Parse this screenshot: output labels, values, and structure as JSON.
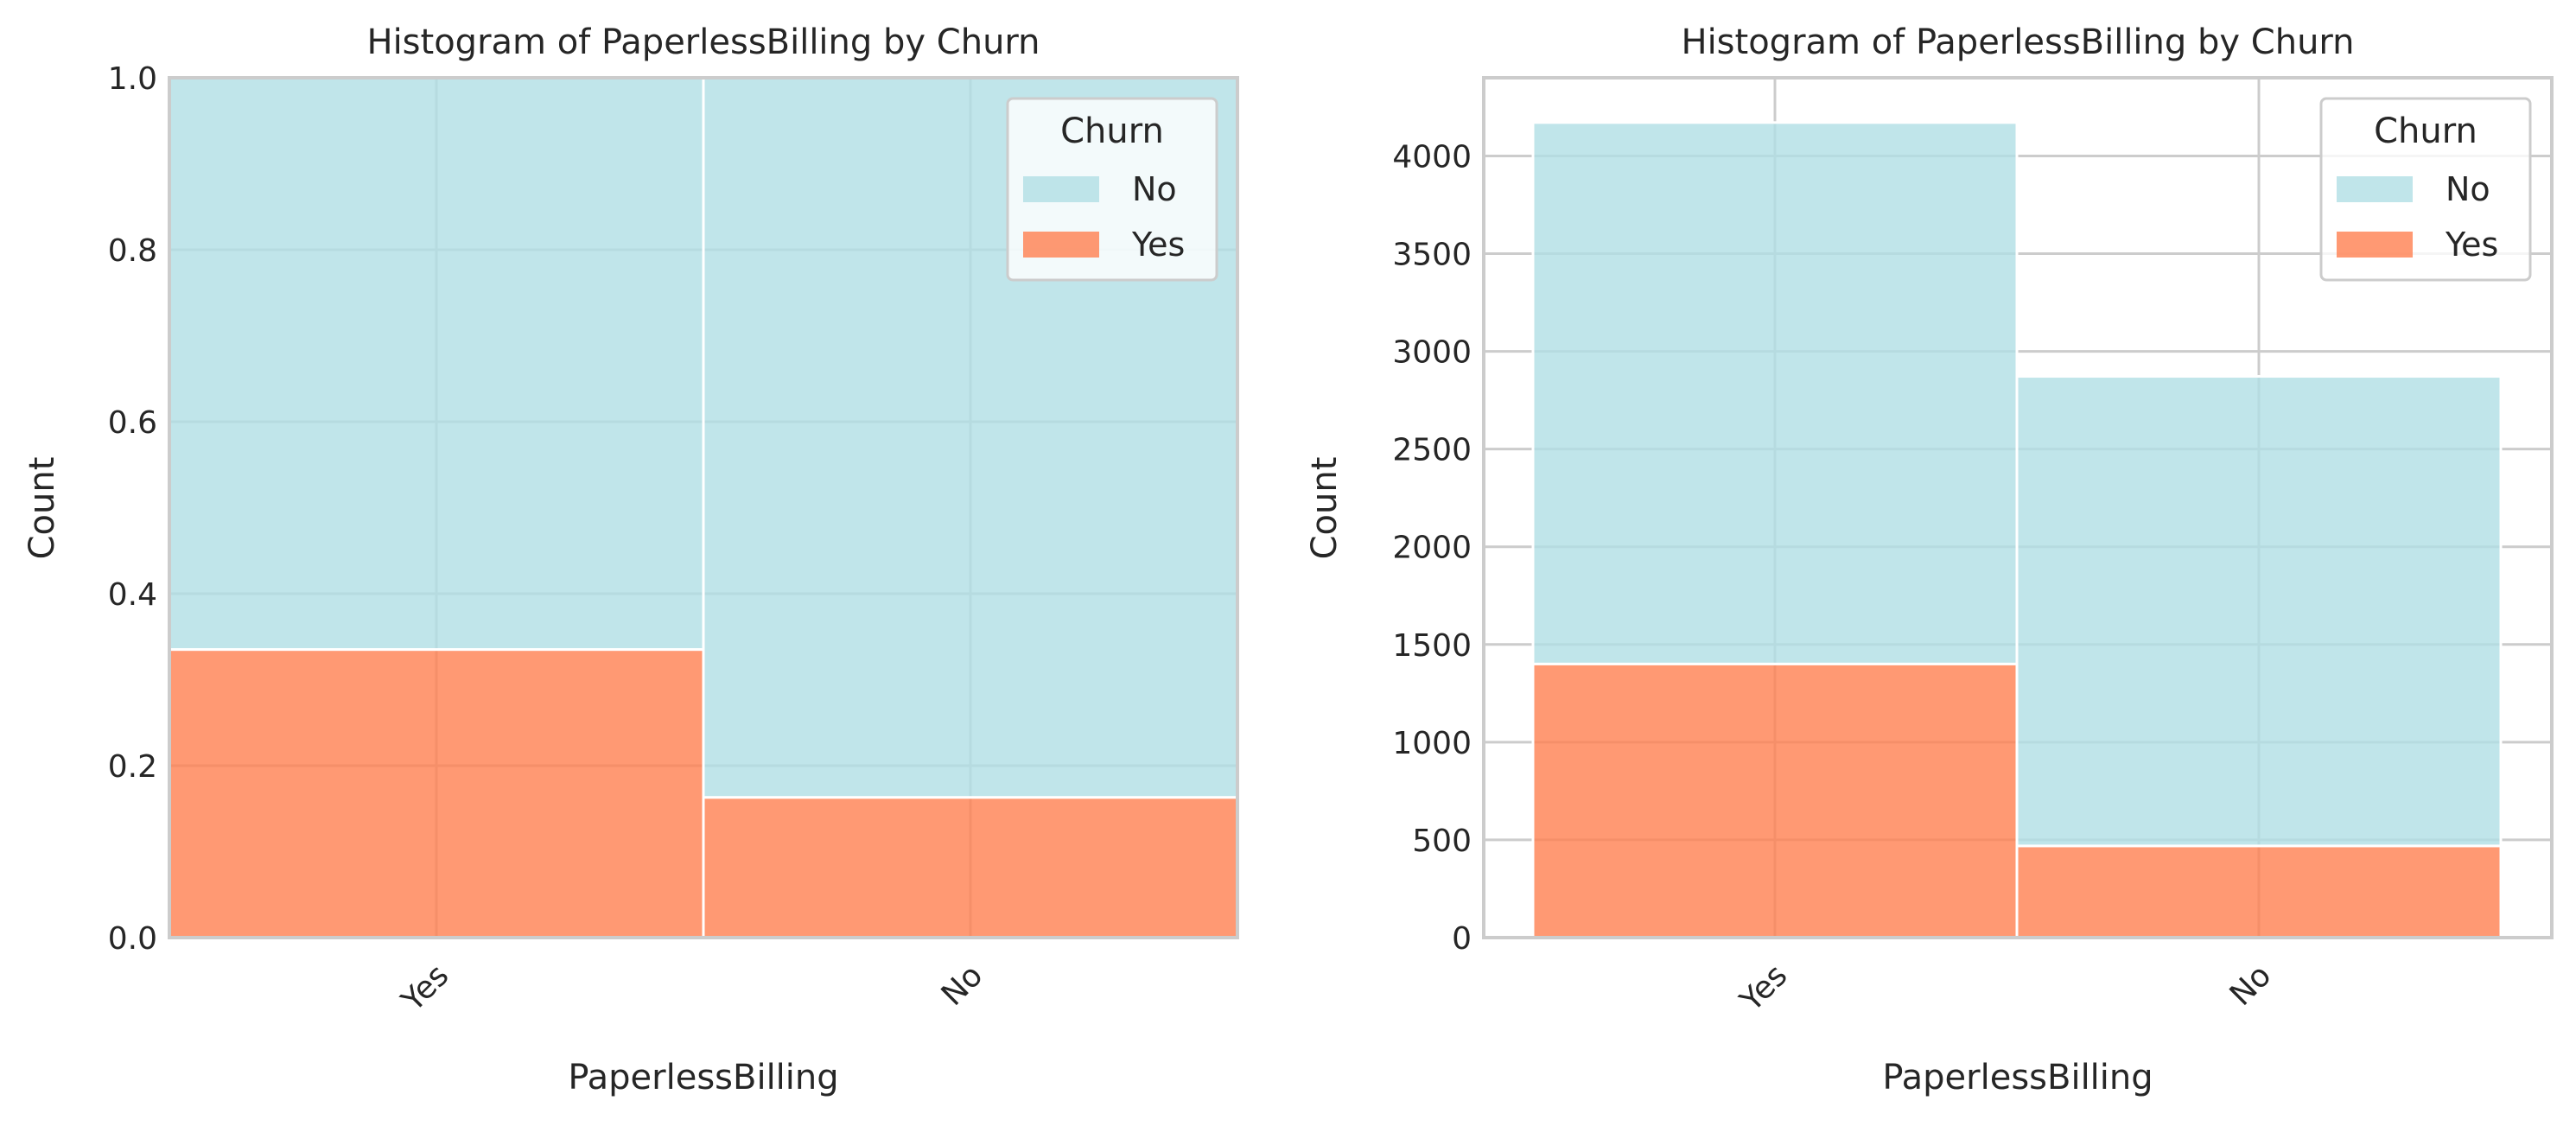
{
  "chart_data": [
    {
      "type": "bar",
      "stacking": "fill",
      "title": "Histogram of PaperlessBilling by Churn",
      "xlabel": "PaperlessBilling",
      "ylabel": "Count",
      "categories": [
        "Yes",
        "No"
      ],
      "ylim": [
        0,
        1.0
      ],
      "yticks": [
        0.0,
        0.2,
        0.4,
        0.6,
        0.8,
        1.0
      ],
      "ytick_labels": [
        "0.0",
        "0.2",
        "0.4",
        "0.6",
        "0.8",
        "1.0"
      ],
      "grid": true,
      "legend": {
        "title": "Churn",
        "position": "top-right",
        "entries": [
          "No",
          "Yes"
        ]
      },
      "series": [
        {
          "name": "No",
          "color": "#b0dfe5",
          "values": [
            0.665,
            0.837
          ]
        },
        {
          "name": "Yes",
          "color": "#ff7f50",
          "values": [
            0.335,
            0.163
          ]
        }
      ]
    },
    {
      "type": "bar",
      "stacking": "stack",
      "title": "Histogram of PaperlessBilling by Churn",
      "xlabel": "PaperlessBilling",
      "ylabel": "Count",
      "categories": [
        "Yes",
        "No"
      ],
      "ylim": [
        0,
        4400
      ],
      "yticks": [
        0,
        500,
        1000,
        1500,
        2000,
        2500,
        3000,
        3500,
        4000
      ],
      "ytick_labels": [
        "0",
        "500",
        "1000",
        "1500",
        "2000",
        "2500",
        "3000",
        "3500",
        "4000"
      ],
      "grid": true,
      "legend": {
        "title": "Churn",
        "position": "top-right",
        "entries": [
          "No",
          "Yes"
        ]
      },
      "series": [
        {
          "name": "No",
          "color": "#b0dfe5",
          "values": [
            2771,
            2403
          ]
        },
        {
          "name": "Yes",
          "color": "#ff7f50",
          "values": [
            1400,
            469
          ]
        }
      ]
    }
  ]
}
